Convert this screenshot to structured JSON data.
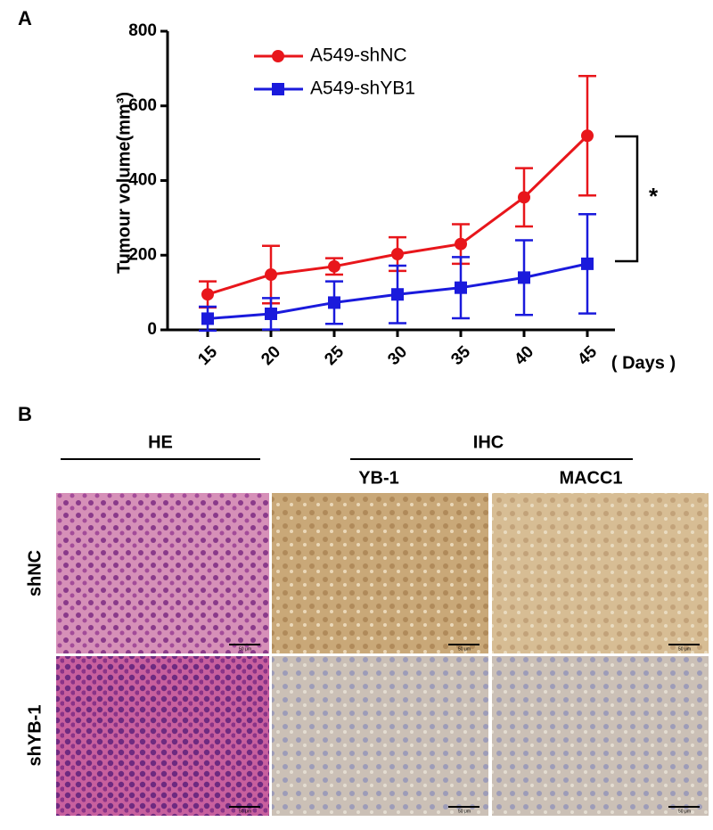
{
  "panel_labels": [
    "A",
    "B"
  ],
  "chart_data": {
    "type": "line",
    "y_label": "Tumour volume(mm³)",
    "x_label": "( Days )",
    "categories": [
      "15",
      "20",
      "25",
      "30",
      "35",
      "40",
      "45"
    ],
    "series": [
      {
        "name": "A549-shNC",
        "color": "#e8161b",
        "marker": "circle",
        "values": [
          95,
          148,
          170,
          203,
          230,
          355,
          520
        ],
        "errors": [
          35,
          77,
          22,
          45,
          53,
          78,
          160
        ]
      },
      {
        "name": "A549-shYB1",
        "color": "#1a1adc",
        "marker": "square",
        "values": [
          30,
          43,
          73,
          95,
          113,
          140,
          177
        ],
        "errors": [
          32,
          42,
          57,
          77,
          82,
          100,
          133
        ]
      }
    ],
    "ylim": [
      0,
      800
    ],
    "yticks": [
      0,
      200,
      400,
      600,
      800
    ],
    "annotation": "*"
  },
  "panel_b": {
    "group_he": "HE",
    "group_ihc": "IHC",
    "columns": [
      "YB-1",
      "MACC1"
    ],
    "rows": [
      "shNC",
      "shYB-1"
    ],
    "scale_bar_label": "50 μm"
  }
}
